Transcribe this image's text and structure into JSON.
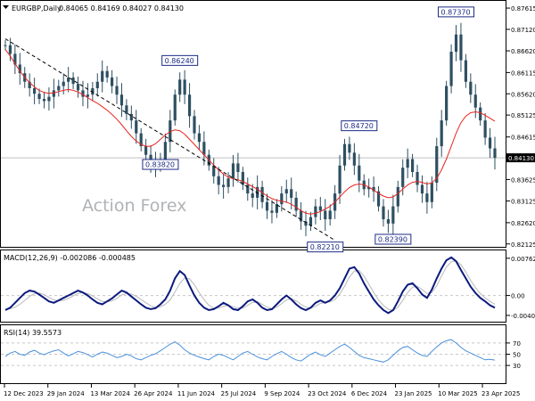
{
  "header": {
    "symbol_label": "EURGBP,Daily",
    "ohlc_label": "0.84065 0.84169 0.84027 0.84130"
  },
  "watermark": "Action Forex",
  "colors": {
    "candle": "#2e4f62",
    "ma": "#e8251f",
    "trendline": "#000000",
    "macd_main": "#0c1a7e",
    "macd_signal": "#b9b9b9",
    "rsi": "#4a90d9",
    "label_box": "#1c2b85",
    "grid": "#c8c8c8"
  },
  "chart_data": [
    {
      "type": "line",
      "name": "price",
      "title": "EURGBP,Daily",
      "ylim": [
        0.8212,
        0.8772
      ],
      "y_ticks": [
        "0.87615",
        "0.87120",
        "0.86620",
        "0.86115",
        "0.85620",
        "0.85125",
        "0.84615",
        "0.84130",
        "0.83625",
        "0.83125",
        "0.82620",
        "0.82125"
      ],
      "x_ticks": [
        "12 Dec 2023",
        "29 Jan 2024",
        "13 Mar 2024",
        "26 Apr 2024",
        "11 Jun 2024",
        "25 Jul 2024",
        "9 Sep 2024",
        "23 Oct 2024",
        "6 Dec 2024",
        "23 Jan 2025",
        "10 Mar 2025",
        "23 Apr 2025"
      ],
      "current_price": "0.84130",
      "close": [
        0.8675,
        0.8655,
        0.863,
        0.861,
        0.859,
        0.8575,
        0.8562,
        0.855,
        0.8545,
        0.8555,
        0.857,
        0.858,
        0.859,
        0.86,
        0.8585,
        0.857,
        0.8555,
        0.856,
        0.8575,
        0.859,
        0.8615,
        0.86,
        0.858,
        0.856,
        0.8535,
        0.8515,
        0.85,
        0.847,
        0.844,
        0.842,
        0.84,
        0.8395,
        0.841,
        0.845,
        0.85,
        0.856,
        0.8595,
        0.856,
        0.851,
        0.847,
        0.845,
        0.842,
        0.8395,
        0.837,
        0.835,
        0.8345,
        0.8365,
        0.84,
        0.838,
        0.835,
        0.833,
        0.832,
        0.8345,
        0.831,
        0.829,
        0.8285,
        0.8305,
        0.833,
        0.834,
        0.832,
        0.829,
        0.8265,
        0.8255,
        0.8275,
        0.83,
        0.829,
        0.827,
        0.829,
        0.833,
        0.8395,
        0.8445,
        0.8425,
        0.8395,
        0.836,
        0.834,
        0.8345,
        0.8335,
        0.83,
        0.827,
        0.826,
        0.83,
        0.8345,
        0.839,
        0.841,
        0.838,
        0.835,
        0.833,
        0.831,
        0.8355,
        0.844,
        0.85,
        0.858,
        0.866,
        0.87,
        0.864,
        0.859,
        0.856,
        0.853,
        0.85,
        0.846,
        0.8435,
        0.8413
      ],
      "ma": [
        0.8665,
        0.865,
        0.8632,
        0.8615,
        0.86,
        0.8588,
        0.8578,
        0.857,
        0.8565,
        0.8563,
        0.8564,
        0.8567,
        0.857,
        0.8572,
        0.857,
        0.8566,
        0.856,
        0.8553,
        0.8546,
        0.854,
        0.8532,
        0.8524,
        0.8514,
        0.8503,
        0.849,
        0.8476,
        0.8463,
        0.8452,
        0.8444,
        0.844,
        0.844,
        0.8446,
        0.8456,
        0.8466,
        0.8474,
        0.8478,
        0.8476,
        0.8468,
        0.8456,
        0.8444,
        0.8432,
        0.842,
        0.8408,
        0.8396,
        0.8385,
        0.8375,
        0.8368,
        0.8364,
        0.8362,
        0.8358,
        0.8352,
        0.8346,
        0.834,
        0.8332,
        0.8324,
        0.8318,
        0.8314,
        0.8312,
        0.831,
        0.8305,
        0.8298,
        0.829,
        0.8284,
        0.8282,
        0.8284,
        0.8288,
        0.8294,
        0.83,
        0.831,
        0.8322,
        0.8334,
        0.8344,
        0.835,
        0.8352,
        0.835,
        0.8345,
        0.8338,
        0.833,
        0.8324,
        0.832,
        0.8322,
        0.833,
        0.834,
        0.835,
        0.8356,
        0.8358,
        0.8356,
        0.8352,
        0.8355,
        0.8365,
        0.8385,
        0.841,
        0.844,
        0.847,
        0.8495,
        0.851,
        0.8518,
        0.852,
        0.8518,
        0.8512,
        0.8505,
        0.8498
      ],
      "annotations": [
        {
          "label": "0.86240",
          "index": 36,
          "value": 0.8624
        },
        {
          "label": "0.83820",
          "index": 32,
          "value": 0.8382
        },
        {
          "label": "0.84720",
          "index": 73,
          "value": 0.8472
        },
        {
          "label": "0.82210",
          "index": 66,
          "value": 0.8221
        },
        {
          "label": "0.82390",
          "index": 80,
          "value": 0.8239
        },
        {
          "label": "0.87370",
          "index": 93,
          "value": 0.8737
        }
      ],
      "trendline": {
        "from": {
          "index": 0,
          "value": 0.869
        },
        "to": {
          "index": 68,
          "value": 0.8221
        }
      }
    },
    {
      "type": "line",
      "name": "MACD",
      "title": "MACD(12,26,9) -0.002086 -0.000485",
      "ylim": [
        -0.005,
        0.0085
      ],
      "y_ticks": [
        "0.007623",
        "0.00",
        "-0.004073"
      ],
      "series": [
        {
          "values": [
            -0.003,
            -0.0025,
            -0.0015,
            -0.0005,
            0.0005,
            0.001,
            0.0008,
            0.0002,
            -0.0005,
            -0.0012,
            -0.0015,
            -0.001,
            -0.0005,
            0.0,
            0.0005,
            0.001,
            0.0006,
            0.0,
            -0.0008,
            -0.0015,
            -0.0018,
            -0.0012,
            -0.0006,
            0.0002,
            0.001,
            0.0006,
            -0.0002,
            -0.001,
            -0.0018,
            -0.0025,
            -0.0028,
            -0.0026,
            -0.0018,
            -0.0008,
            0.001,
            0.0035,
            0.005,
            0.0042,
            0.002,
            0.0,
            -0.0015,
            -0.0025,
            -0.003,
            -0.0028,
            -0.0022,
            -0.0015,
            -0.002,
            -0.0028,
            -0.003,
            -0.0022,
            -0.0012,
            -0.0008,
            -0.0015,
            -0.0025,
            -0.003,
            -0.0028,
            -0.0018,
            -0.0008,
            0.0,
            -0.0008,
            -0.0018,
            -0.0026,
            -0.003,
            -0.0025,
            -0.0015,
            -0.001,
            -0.0015,
            -0.001,
            0.0,
            0.0015,
            0.0035,
            0.0055,
            0.0058,
            0.0045,
            0.0025,
            0.0008,
            -0.0008,
            -0.002,
            -0.003,
            -0.0036,
            -0.003,
            -0.0012,
            0.0008,
            0.0022,
            0.0025,
            0.0015,
            0.0002,
            -0.0005,
            0.0012,
            0.0035,
            0.0055,
            0.0072,
            0.0078,
            0.007,
            0.0052,
            0.0035,
            0.0018,
            0.0005,
            -0.0005,
            -0.0012,
            -0.002,
            -0.0025
          ]
        },
        {
          "values": [
            -0.0028,
            -0.0027,
            -0.0024,
            -0.0018,
            -0.001,
            -0.0002,
            0.0004,
            0.0005,
            0.0002,
            -0.0004,
            -0.0009,
            -0.0011,
            -0.001,
            -0.0006,
            -0.0001,
            0.0004,
            0.0006,
            0.0004,
            -0.0001,
            -0.0007,
            -0.0012,
            -0.0013,
            -0.0011,
            -0.0006,
            0.0001,
            0.0004,
            0.0003,
            -0.0002,
            -0.0008,
            -0.0015,
            -0.0021,
            -0.0024,
            -0.0023,
            -0.0018,
            -0.0009,
            0.0007,
            0.0025,
            0.0036,
            0.0034,
            0.0022,
            0.0006,
            -0.0009,
            -0.002,
            -0.0026,
            -0.0026,
            -0.0022,
            -0.002,
            -0.0023,
            -0.0026,
            -0.0026,
            -0.002,
            -0.0014,
            -0.0013,
            -0.0018,
            -0.0024,
            -0.0027,
            -0.0024,
            -0.0017,
            -0.0009,
            -0.0007,
            -0.0011,
            -0.0018,
            -0.0024,
            -0.0026,
            -0.0022,
            -0.0016,
            -0.0015,
            -0.0013,
            -0.0008,
            0.0003,
            0.0019,
            0.0038,
            0.005,
            0.0051,
            0.004,
            0.0023,
            0.0006,
            -0.0009,
            -0.002,
            -0.0028,
            -0.0031,
            -0.0024,
            -0.001,
            0.0006,
            0.0017,
            0.0019,
            0.0012,
            0.0004,
            0.0006,
            0.002,
            0.004,
            0.0058,
            0.0069,
            0.0071,
            0.0063,
            0.0048,
            0.0031,
            0.0016,
            0.0004,
            -0.0005,
            -0.0012,
            -0.0018
          ]
        }
      ]
    },
    {
      "type": "line",
      "name": "RSI",
      "title": "RSI(14) 39.5573",
      "ylim": [
        0,
        100
      ],
      "y_ticks": [
        "70",
        "50",
        "30"
      ],
      "series": [
        {
          "values": [
            46,
            52,
            55,
            50,
            48,
            54,
            57,
            52,
            49,
            53,
            56,
            58,
            52,
            47,
            51,
            55,
            53,
            49,
            45,
            50,
            54,
            52,
            48,
            44,
            46,
            50,
            47,
            42,
            40,
            44,
            48,
            51,
            56,
            62,
            68,
            72,
            66,
            58,
            52,
            48,
            45,
            42,
            40,
            46,
            50,
            48,
            44,
            40,
            46,
            52,
            55,
            50,
            45,
            42,
            40,
            46,
            51,
            55,
            50,
            44,
            40,
            38,
            44,
            50,
            54,
            49,
            46,
            52,
            58,
            64,
            68,
            62,
            55,
            48,
            44,
            42,
            40,
            38,
            36,
            40,
            48,
            56,
            62,
            64,
            58,
            52,
            48,
            46,
            55,
            63,
            70,
            74,
            76,
            70,
            62,
            56,
            52,
            48,
            44,
            40,
            41,
            39.5573
          ]
        }
      ]
    }
  ]
}
